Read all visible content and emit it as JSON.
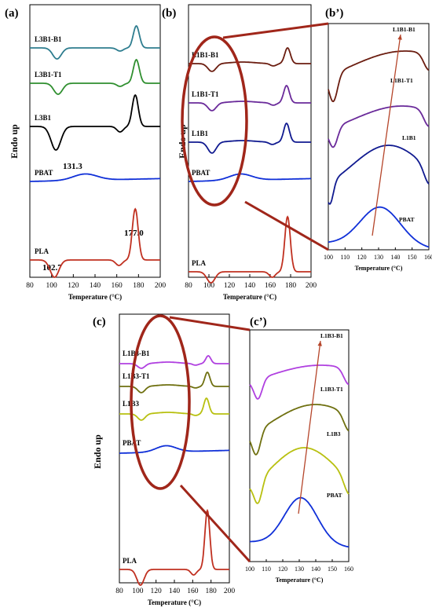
{
  "chart_data": [
    {
      "id": "a",
      "panel_label": "(a)",
      "type": "line",
      "xlabel": "Temperature (°C)",
      "ylabel": "Endo up",
      "xlim": [
        80,
        200
      ],
      "xticks": [
        80,
        100,
        120,
        140,
        160,
        180,
        200
      ],
      "series": [
        {
          "name": "L3B1-B1",
          "color": "#2e7d8f",
          "base": 25,
          "peaks": [
            [
              105,
              -14,
              4
            ],
            [
              163,
              -4,
              3
            ],
            [
              178,
              28,
              2.8
            ]
          ]
        },
        {
          "name": "L3B1-T1",
          "color": "#2f8f2f",
          "base": 70,
          "peaks": [
            [
              106,
              -14,
              4
            ],
            [
              163,
              -4,
              3
            ],
            [
              178,
              30,
              2.8
            ]
          ]
        },
        {
          "name": "L3B1",
          "color": "#000000",
          "base": 125,
          "peaks": [
            [
              104,
              -30,
              4.5
            ],
            [
              163,
              -7,
              3
            ],
            [
              177,
              40,
              2.8
            ]
          ]
        },
        {
          "name": "PBAT",
          "color": "#1030d8",
          "base": 195,
          "slope": 0.03,
          "peaks": [
            [
              131,
              8,
              11
            ]
          ]
        },
        {
          "name": "PLA",
          "color": "#c03020",
          "base": 295,
          "peaks": [
            [
              102.7,
              -22,
              4
            ],
            [
              162,
              -7,
              3
            ],
            [
              177,
              65,
              2.7
            ]
          ]
        }
      ],
      "annotations": [
        "131.3",
        "177.0",
        "102.7"
      ]
    },
    {
      "id": "b",
      "panel_label": "(b)",
      "type": "line",
      "xlabel": "Temperature (°C)",
      "ylabel": "Endo up",
      "xlim": [
        80,
        200
      ],
      "xticks": [
        80,
        100,
        120,
        140,
        160,
        180,
        200
      ],
      "series": [
        {
          "name": "L1B1-B1",
          "color": "#6b1d10",
          "base": 45,
          "peaks": [
            [
              103,
              -10,
              4
            ],
            [
              133,
              2,
              12
            ],
            [
              163,
              -3,
              3
            ],
            [
              177,
              20,
              2.8
            ]
          ]
        },
        {
          "name": "L1B1-T1",
          "color": "#6a2a9a",
          "base": 95,
          "peaks": [
            [
              103,
              -10,
              4
            ],
            [
              133,
              2,
              12
            ],
            [
              163,
              -3,
              3
            ],
            [
              176,
              22,
              2.8
            ]
          ]
        },
        {
          "name": "L1B1",
          "color": "#101a90",
          "base": 145,
          "peaks": [
            [
              103,
              -14,
              4
            ],
            [
              133,
              2,
              12
            ],
            [
              162,
              -3,
              3
            ],
            [
              176,
              24,
              2.8
            ]
          ]
        },
        {
          "name": "PBAT",
          "color": "#1030d8",
          "base": 195,
          "slope": 0.03,
          "peaks": [
            [
              131,
              8,
              11
            ]
          ]
        },
        {
          "name": "PLA",
          "color": "#c03020",
          "base": 310,
          "peaks": [
            [
              102,
              -14,
              4
            ],
            [
              162,
              -7,
              3
            ],
            [
              177,
              70,
              2.7
            ]
          ]
        }
      ]
    },
    {
      "id": "b'",
      "panel_label": "(b’)",
      "type": "line",
      "xlabel": "Temperature (°C)",
      "ylabel": "",
      "xlim": [
        100,
        160
      ],
      "xticks": [
        100,
        110,
        120,
        130,
        140,
        150,
        160
      ],
      "series": [
        {
          "name": "L1B1-B1",
          "color": "#6b1d10"
        },
        {
          "name": "L1B1-T1",
          "color": "#6a2a9a"
        },
        {
          "name": "L1B1",
          "color": "#101a90"
        },
        {
          "name": "PBAT",
          "color": "#1030d8"
        }
      ]
    },
    {
      "id": "c",
      "panel_label": "(c)",
      "type": "line",
      "xlabel": "Temperature (°C)",
      "ylabel": "Endo up",
      "xlim": [
        80,
        200
      ],
      "xticks": [
        80,
        100,
        120,
        140,
        160,
        180,
        200
      ],
      "series": [
        {
          "name": "L1B3-B1",
          "color": "#b040e0",
          "base": 33,
          "peaks": [
            [
              104,
              -6,
              4
            ],
            [
              133,
              2,
              12
            ],
            [
              163,
              -2,
              3
            ],
            [
              177,
              10,
              2.8
            ]
          ]
        },
        {
          "name": "L1B3-T1",
          "color": "#6f7010",
          "base": 62,
          "peaks": [
            [
              104,
              -8,
              4
            ],
            [
              133,
              2,
              12
            ],
            [
              163,
              -2,
              3
            ],
            [
              176,
              18,
              2.8
            ]
          ]
        },
        {
          "name": "L1B3",
          "color": "#b8c010",
          "base": 97,
          "peaks": [
            [
              104,
              -8,
              4
            ],
            [
              133,
              2,
              12
            ],
            [
              163,
              -2,
              3
            ],
            [
              175,
              20,
              2.8
            ]
          ]
        },
        {
          "name": "PBAT",
          "color": "#1030d8",
          "base": 147,
          "slope": 0.03,
          "peaks": [
            [
              131,
              8,
              11
            ]
          ]
        },
        {
          "name": "PLA",
          "color": "#c03020",
          "base": 295,
          "peaks": [
            [
              103,
              -20,
              4
            ],
            [
              161,
              -7,
              3
            ],
            [
              176,
              75,
              2.7
            ]
          ]
        }
      ]
    },
    {
      "id": "c'",
      "panel_label": "(c’)",
      "type": "line",
      "xlabel": "Temperature (°C)",
      "ylabel": "",
      "xlim": [
        100,
        160
      ],
      "xticks": [
        100,
        110,
        120,
        130,
        140,
        150,
        160
      ],
      "series": [
        {
          "name": "L1B3-B1",
          "color": "#b040e0"
        },
        {
          "name": "L1B3-T1",
          "color": "#6f7010"
        },
        {
          "name": "L1B3",
          "color": "#b8c010"
        },
        {
          "name": "PBAT",
          "color": "#1030d8"
        }
      ]
    }
  ]
}
